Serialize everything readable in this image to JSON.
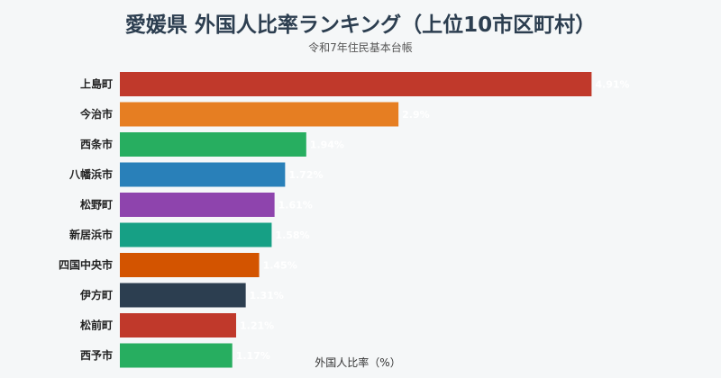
{
  "chart_data": {
    "type": "bar",
    "orientation": "horizontal",
    "title": "愛媛県 外国人比率ランキング（上位10市区町村）",
    "subtitle": "令和7年住民基本台帳",
    "xlabel": "外国人比率（%）",
    "ylabel": "",
    "categories": [
      "上島町",
      "今治市",
      "西条市",
      "八幡浜市",
      "松野町",
      "新居浜市",
      "四国中央市",
      "伊方町",
      "松前町",
      "西予市"
    ],
    "values": [
      4.91,
      2.9,
      1.94,
      1.72,
      1.61,
      1.58,
      1.45,
      1.31,
      1.21,
      1.17
    ],
    "value_labels": [
      "4.91%",
      "2.9%",
      "1.94%",
      "1.72%",
      "1.61%",
      "1.58%",
      "1.45%",
      "1.31%",
      "1.21%",
      "1.17%"
    ],
    "colors": [
      "#c0392b",
      "#e67e22",
      "#27ae60",
      "#2980b9",
      "#8e44ad",
      "#16a085",
      "#d35400",
      "#2c3e50",
      "#c0392b",
      "#27ae60"
    ],
    "xlim": [
      0,
      5.2
    ],
    "grid": false,
    "legend": "none"
  }
}
